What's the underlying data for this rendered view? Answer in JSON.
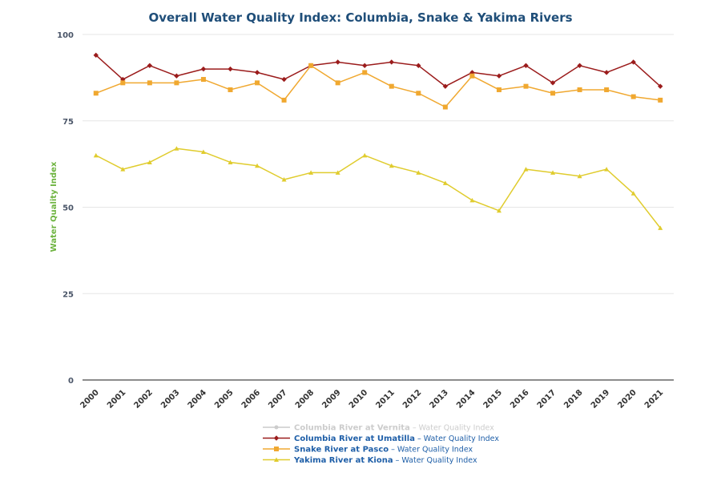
{
  "chart_data": {
    "type": "line",
    "title": "Overall Water Quality Index: Columbia, Snake & Yakima Rivers",
    "xlabel": "",
    "ylabel": "Water Quality Index",
    "ylim": [
      0,
      100
    ],
    "y_ticks": [
      0,
      25,
      50,
      75,
      100
    ],
    "grid": true,
    "legend_position": "bottom-center",
    "categories": [
      "2000",
      "2001",
      "2002",
      "2003",
      "2004",
      "2005",
      "2006",
      "2007",
      "2008",
      "2009",
      "2010",
      "2011",
      "2012",
      "2013",
      "2014",
      "2015",
      "2016",
      "2017",
      "2018",
      "2019",
      "2020",
      "2021"
    ],
    "series": [
      {
        "name": "Columbia River at Vernita",
        "suffix": "Water Quality Index",
        "color": "#cccccc",
        "name_color": "#cccccc",
        "suffix_color": "#cccccc",
        "marker": "circle",
        "visible": false,
        "values": []
      },
      {
        "name": "Columbia River at Umatilla",
        "suffix": "Water Quality Index",
        "color": "#9b1c1c",
        "name_color": "#1f5fa8",
        "suffix_color": "#1f5fa8",
        "marker": "diamond",
        "visible": true,
        "values": [
          94,
          87,
          91,
          88,
          90,
          90,
          89,
          87,
          91,
          92,
          91,
          92,
          91,
          85,
          89,
          88,
          91,
          86,
          91,
          89,
          92,
          85
        ]
      },
      {
        "name": "Snake River at Pasco",
        "suffix": "Water Quality Index",
        "color": "#f0a830",
        "name_color": "#1f5fa8",
        "suffix_color": "#1f5fa8",
        "marker": "square",
        "visible": true,
        "values": [
          83,
          86,
          86,
          86,
          87,
          84,
          86,
          81,
          91,
          86,
          89,
          85,
          83,
          79,
          88,
          84,
          85,
          83,
          84,
          84,
          82,
          81
        ]
      },
      {
        "name": "Yakima River at Kiona",
        "suffix": "Water Quality Index",
        "color": "#e0cc2e",
        "name_color": "#1f5fa8",
        "suffix_color": "#1f5fa8",
        "marker": "triangle",
        "visible": true,
        "values": [
          65,
          61,
          63,
          67,
          66,
          63,
          62,
          58,
          60,
          60,
          65,
          62,
          60,
          57,
          52,
          49,
          61,
          60,
          59,
          61,
          54,
          44
        ]
      }
    ]
  }
}
